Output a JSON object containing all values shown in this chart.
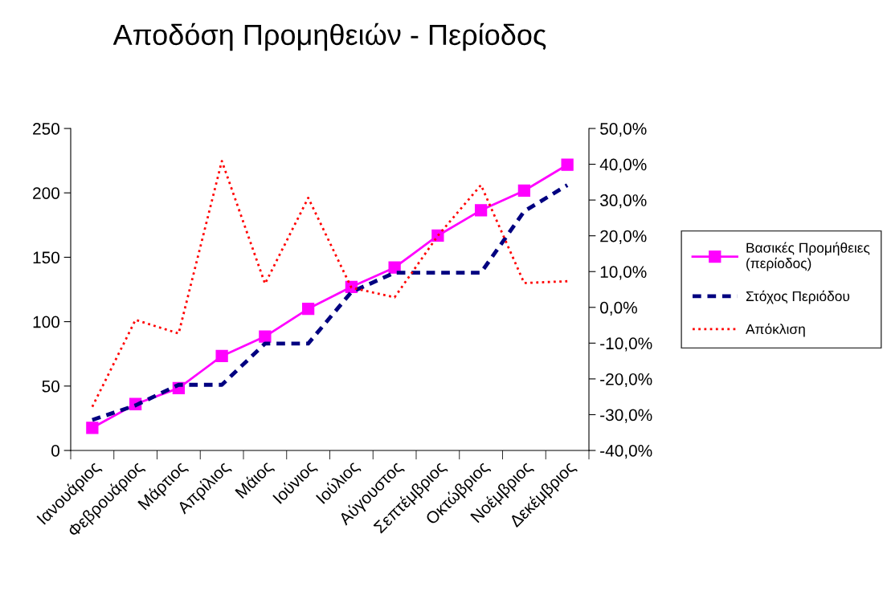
{
  "chart_data": {
    "type": "line",
    "title": "Αποδόση Προμηθειών - Περίοδος",
    "categories": [
      "Ιανουάριος",
      "Φεβρουάριος",
      "Μάρτιος",
      "Απρίλιος",
      "Μάιος",
      "Ιούνιος",
      "Ιούλιος",
      "Αύγουστος",
      "Σεπτέμβριος",
      "Οκτώβριος",
      "Νοέμβριος",
      "Δεκέμβριος"
    ],
    "series": [
      {
        "name": "Βασικές Προμήθειες (περίοδος)",
        "color": "#ff00ff",
        "marker": "square",
        "line_style": "solid",
        "values": [
          17.6,
          36,
          48.4,
          73.3,
          88.5,
          110,
          127,
          142,
          166.8,
          186.5,
          201.7,
          221.8
        ]
      },
      {
        "name": "Στόχος Περιόδου",
        "color": "#000080",
        "marker": "none",
        "line_style": "dashed",
        "values": [
          23.7,
          35,
          51,
          51,
          83,
          83,
          123,
          138,
          138,
          138,
          185.7,
          206
        ]
      },
      {
        "name": "Απόκλιση",
        "color": "#ff0000",
        "marker": "none",
        "line_style": "dotted",
        "axis": "y2",
        "values": [
          -27.8,
          -3.5,
          -7.3,
          40.9,
          6.6,
          30.6,
          5.5,
          2.8,
          20.0,
          34.2,
          6.8,
          7.3
        ]
      }
    ],
    "ylim": [
      0,
      250
    ],
    "yticks": [
      0,
      50,
      100,
      150,
      200,
      250
    ],
    "y2lim": [
      -40,
      50
    ],
    "y2ticks": [
      {
        "value": -40,
        "label": "-40,0%"
      },
      {
        "value": -30,
        "label": "-30,0%"
      },
      {
        "value": -20,
        "label": "-20,0%"
      },
      {
        "value": -10,
        "label": "-10,0%"
      },
      {
        "value": 0,
        "label": "0,0%"
      },
      {
        "value": 10,
        "label": "10,0%"
      },
      {
        "value": 20,
        "label": "20,0%"
      },
      {
        "value": 30,
        "label": "30,0%"
      },
      {
        "value": 40,
        "label": "40,0%"
      },
      {
        "value": 50,
        "label": "50,0%"
      }
    ],
    "grid": false,
    "legend": "right"
  }
}
